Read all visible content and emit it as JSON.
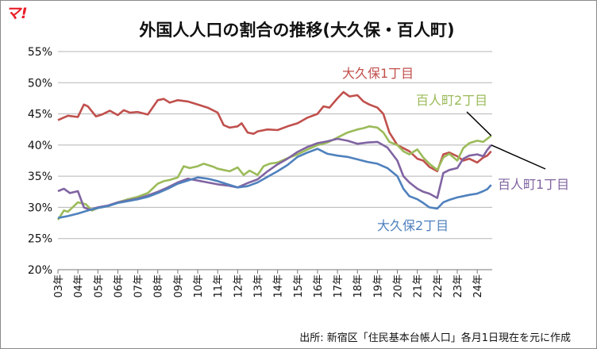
{
  "logo": {
    "text": "マ!",
    "color": "#e8202a"
  },
  "chart_data": {
    "type": "line",
    "title": "外国人人口の割合の推移(大久保・百人町)",
    "source": "出所: 新宿区「住民基本台帳人口」各月1日現在を元に作成",
    "xlabel": "",
    "ylabel": "",
    "ylim": [
      20,
      55
    ],
    "yticks": [
      20,
      25,
      30,
      35,
      40,
      45,
      50,
      55
    ],
    "ytick_suffix": "%",
    "xlim": [
      2003.0,
      2024.75
    ],
    "xticks": [
      "03年",
      "04年",
      "05年",
      "06年",
      "07年",
      "08年",
      "09年",
      "10年",
      "11年",
      "12年",
      "13年",
      "14年",
      "15年",
      "16年",
      "17年",
      "18年",
      "19年",
      "20年",
      "21年",
      "22年",
      "23年",
      "24年"
    ],
    "grid": {
      "horizontal": true,
      "vertical": false
    },
    "x_unit": "year (decimal)",
    "series": [
      {
        "name": "大久保1丁目",
        "color": "#c0504d",
        "x": [
          2003.0,
          2003.5,
          2004.0,
          2004.3,
          2004.5,
          2004.9,
          2005.2,
          2005.6,
          2006.0,
          2006.3,
          2006.6,
          2007.0,
          2007.5,
          2008.0,
          2008.3,
          2008.6,
          2009.0,
          2009.5,
          2010.0,
          2010.5,
          2011.0,
          2011.3,
          2011.6,
          2012.0,
          2012.2,
          2012.5,
          2012.8,
          2013.0,
          2013.5,
          2014.0,
          2014.5,
          2015.0,
          2015.5,
          2016.0,
          2016.3,
          2016.6,
          2017.0,
          2017.3,
          2017.6,
          2018.0,
          2018.3,
          2018.6,
          2019.0,
          2019.3,
          2019.6,
          2020.0,
          2020.3,
          2020.6,
          2021.0,
          2021.3,
          2021.6,
          2022.0,
          2022.3,
          2022.6,
          2023.0,
          2023.3,
          2023.6,
          2024.0,
          2024.3,
          2024.5,
          2024.7
        ],
        "y": [
          44.0,
          44.7,
          44.5,
          46.5,
          46.2,
          44.6,
          44.9,
          45.5,
          44.8,
          45.6,
          45.2,
          45.3,
          44.9,
          47.2,
          47.4,
          46.8,
          47.2,
          47.0,
          46.5,
          46.0,
          45.2,
          43.2,
          42.8,
          43.0,
          43.5,
          42.0,
          41.8,
          42.2,
          42.5,
          42.4,
          43.0,
          43.5,
          44.4,
          45.0,
          46.2,
          46.0,
          47.5,
          48.5,
          47.8,
          48.0,
          47.0,
          46.5,
          46.0,
          45.0,
          42.0,
          40.0,
          39.5,
          39.0,
          37.8,
          37.5,
          36.5,
          35.8,
          38.5,
          38.8,
          38.2,
          37.5,
          37.8,
          37.2,
          38.0,
          38.3,
          39.0
        ]
      },
      {
        "name": "百人町2丁目",
        "color": "#9bbb59",
        "x": [
          2003.0,
          2003.3,
          2003.5,
          2004.0,
          2004.4,
          2004.7,
          2005.0,
          2005.5,
          2006.0,
          2006.5,
          2007.0,
          2007.5,
          2008.0,
          2008.3,
          2008.6,
          2009.0,
          2009.3,
          2009.6,
          2010.0,
          2010.3,
          2010.5,
          2010.8,
          2011.0,
          2011.3,
          2011.6,
          2012.0,
          2012.3,
          2012.6,
          2013.0,
          2013.3,
          2013.6,
          2014.0,
          2014.5,
          2015.0,
          2015.5,
          2016.0,
          2016.5,
          2017.0,
          2017.5,
          2018.0,
          2018.3,
          2018.6,
          2019.0,
          2019.3,
          2019.6,
          2020.0,
          2020.3,
          2020.6,
          2021.0,
          2021.3,
          2021.6,
          2022.0,
          2022.3,
          2022.6,
          2023.0,
          2023.3,
          2023.6,
          2024.0,
          2024.3,
          2024.5,
          2024.7
        ],
        "y": [
          28.0,
          29.5,
          29.3,
          30.8,
          30.5,
          29.5,
          29.9,
          30.2,
          30.8,
          31.3,
          31.7,
          32.3,
          33.8,
          34.2,
          34.4,
          34.8,
          36.6,
          36.3,
          36.6,
          37.0,
          36.8,
          36.5,
          36.2,
          36.0,
          35.8,
          36.4,
          35.2,
          35.9,
          35.2,
          36.6,
          37.0,
          37.2,
          37.9,
          38.5,
          39.3,
          40.0,
          40.4,
          41.2,
          42.0,
          42.5,
          42.7,
          43.0,
          42.8,
          42.0,
          40.5,
          40.0,
          39.0,
          38.5,
          39.3,
          38.0,
          37.0,
          36.0,
          38.0,
          38.6,
          37.5,
          39.5,
          40.3,
          40.7,
          40.5,
          41.0,
          41.5
        ]
      },
      {
        "name": "百人町1丁目",
        "color": "#8064a2",
        "x": [
          2003.0,
          2003.3,
          2003.6,
          2004.0,
          2004.3,
          2004.6,
          2005.0,
          2005.5,
          2006.0,
          2006.5,
          2007.0,
          2007.5,
          2008.0,
          2008.5,
          2009.0,
          2009.5,
          2010.0,
          2010.5,
          2011.0,
          2011.5,
          2012.0,
          2012.5,
          2013.0,
          2013.5,
          2014.0,
          2014.5,
          2015.0,
          2015.5,
          2016.0,
          2016.5,
          2017.0,
          2017.5,
          2018.0,
          2018.5,
          2019.0,
          2019.5,
          2020.0,
          2020.3,
          2020.6,
          2021.0,
          2021.3,
          2021.6,
          2022.0,
          2022.3,
          2022.6,
          2023.0,
          2023.3,
          2023.6,
          2024.0,
          2024.3,
          2024.5,
          2024.7
        ],
        "y": [
          32.6,
          33.0,
          32.3,
          32.6,
          30.0,
          29.6,
          30.0,
          30.3,
          30.8,
          31.1,
          31.4,
          31.9,
          32.5,
          33.2,
          34.0,
          34.6,
          34.3,
          34.0,
          33.7,
          33.5,
          33.2,
          33.9,
          34.5,
          35.8,
          36.9,
          37.8,
          38.9,
          39.7,
          40.3,
          40.6,
          41.0,
          40.7,
          40.2,
          40.4,
          40.5,
          39.6,
          37.5,
          35.0,
          34.0,
          33.0,
          32.5,
          32.2,
          31.5,
          35.5,
          36.0,
          36.3,
          37.8,
          38.3,
          38.5,
          38.2,
          39.2,
          40.0
        ]
      },
      {
        "name": "大久保2丁目",
        "color": "#4f81bd",
        "x": [
          2003.0,
          2003.5,
          2004.0,
          2004.5,
          2005.0,
          2005.5,
          2006.0,
          2006.5,
          2007.0,
          2007.5,
          2008.0,
          2008.5,
          2009.0,
          2009.5,
          2010.0,
          2010.5,
          2011.0,
          2011.5,
          2012.0,
          2012.5,
          2013.0,
          2013.5,
          2014.0,
          2014.5,
          2015.0,
          2015.5,
          2016.0,
          2016.5,
          2017.0,
          2017.5,
          2018.0,
          2018.5,
          2019.0,
          2019.5,
          2020.0,
          2020.3,
          2020.6,
          2021.0,
          2021.3,
          2021.6,
          2022.0,
          2022.3,
          2022.6,
          2023.0,
          2023.3,
          2023.6,
          2024.0,
          2024.3,
          2024.5,
          2024.7
        ],
        "y": [
          28.3,
          28.6,
          29.0,
          29.5,
          29.9,
          30.2,
          30.7,
          31.0,
          31.3,
          31.7,
          32.3,
          33.0,
          33.8,
          34.3,
          34.8,
          34.6,
          34.2,
          33.7,
          33.2,
          33.4,
          34.0,
          34.9,
          35.8,
          36.8,
          38.1,
          38.8,
          39.4,
          38.6,
          38.3,
          38.1,
          37.7,
          37.3,
          37.0,
          36.3,
          35.0,
          33.0,
          31.8,
          31.3,
          30.7,
          30.0,
          29.8,
          30.8,
          31.2,
          31.6,
          31.8,
          32.0,
          32.2,
          32.6,
          32.9,
          33.6
        ]
      }
    ],
    "annotations": [
      {
        "text": "大久保1丁目",
        "series": "大久保1丁目"
      },
      {
        "text": "百人町2丁目",
        "series": "百人町2丁目"
      },
      {
        "text": "百人町1丁目",
        "series": "百人町1丁目"
      },
      {
        "text": "大久保2丁目",
        "series": "大久保2丁目"
      }
    ]
  }
}
